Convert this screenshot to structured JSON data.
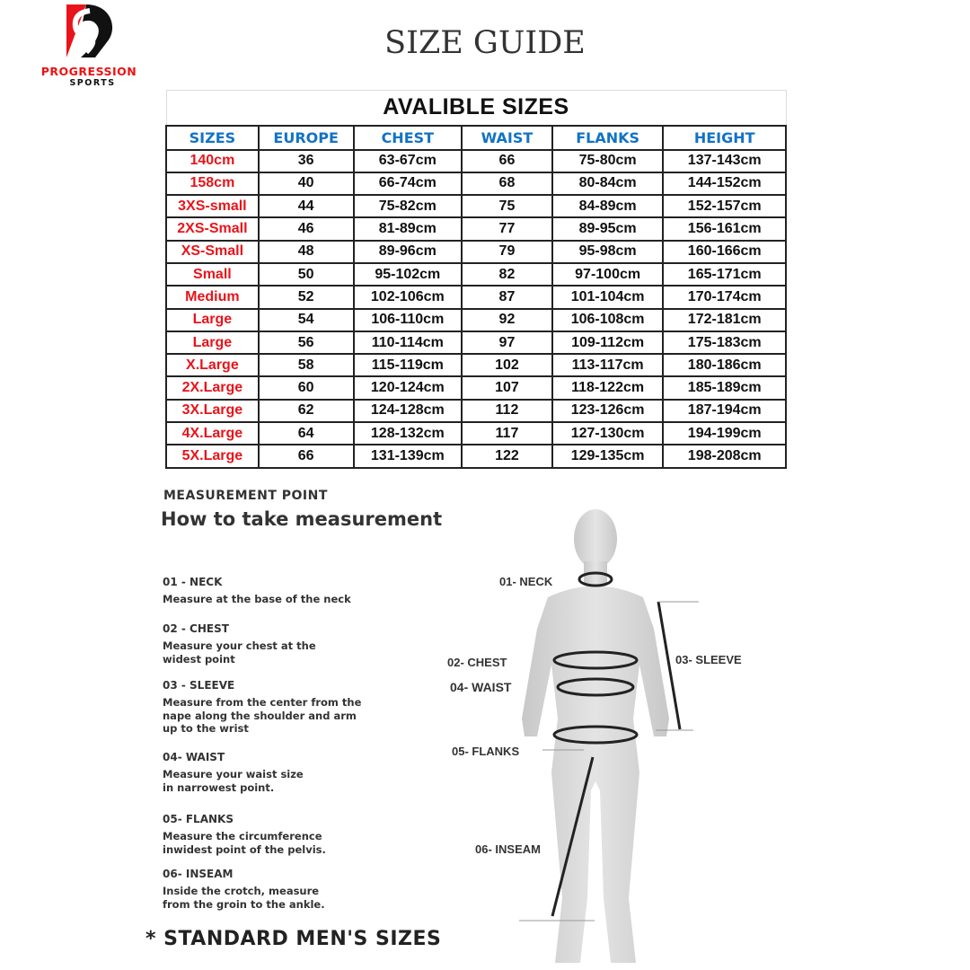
{
  "brand": {
    "name": "PROGRESSION",
    "sub": "SPORTS",
    "colors": {
      "red": "#e8141a",
      "black": "#111111"
    }
  },
  "title": "SIZE GUIDE",
  "table": {
    "caption": "AVALIBLE SIZES",
    "headers": [
      "SIZES",
      "EUROPE",
      "CHEST",
      "WAIST",
      "FLANKS",
      "HEIGHT"
    ],
    "header_color": "#1273c4",
    "size_color": "#e8141a",
    "rows": [
      [
        "140cm",
        "36",
        "63-67cm",
        "66",
        "75-80cm",
        "137-143cm"
      ],
      [
        "158cm",
        "40",
        "66-74cm",
        "68",
        "80-84cm",
        "144-152cm"
      ],
      [
        "3XS-small",
        "44",
        "75-82cm",
        "75",
        "84-89cm",
        "152-157cm"
      ],
      [
        "2XS-Small",
        "46",
        "81-89cm",
        "77",
        "89-95cm",
        "156-161cm"
      ],
      [
        "XS-Small",
        "48",
        "89-96cm",
        "79",
        "95-98cm",
        "160-166cm"
      ],
      [
        "Small",
        "50",
        "95-102cm",
        "82",
        "97-100cm",
        "165-171cm"
      ],
      [
        "Medium",
        "52",
        "102-106cm",
        "87",
        "101-104cm",
        "170-174cm"
      ],
      [
        "Large",
        "54",
        "106-110cm",
        "92",
        "106-108cm",
        "172-181cm"
      ],
      [
        "Large",
        "56",
        "110-114cm",
        "97",
        "109-112cm",
        "175-183cm"
      ],
      [
        "X.Large",
        "58",
        "115-119cm",
        "102",
        "113-117cm",
        "180-186cm"
      ],
      [
        "2X.Large",
        "60",
        "120-124cm",
        "107",
        "118-122cm",
        "185-189cm"
      ],
      [
        "3X.Large",
        "62",
        "124-128cm",
        "112",
        "123-126cm",
        "187-194cm"
      ],
      [
        "4X.Large",
        "64",
        "128-132cm",
        "117",
        "127-130cm",
        "194-199cm"
      ],
      [
        "5X.Large",
        "66",
        "131-139cm",
        "122",
        "129-135cm",
        "198-208cm"
      ]
    ]
  },
  "measurement": {
    "heading": "MEASUREMENT POINT",
    "subheading": "How to take measurement",
    "steps": [
      {
        "title": "01 - NECK",
        "desc": [
          "Measure at the base of the neck"
        ]
      },
      {
        "title": "02 - CHEST",
        "desc": [
          "Measure your chest at the",
          "widest point"
        ]
      },
      {
        "title": "03 - SLEEVE",
        "desc": [
          "Measure from the center from the",
          "nape along the shoulder and arm",
          "up to the wrist"
        ]
      },
      {
        "title": "04- WAIST",
        "desc": [
          "Measure your waist size",
          "in narrowest point."
        ]
      },
      {
        "title": "05-  FLANKS",
        "desc": [
          "Measure the circumference",
          "inwidest point of the pelvis."
        ]
      },
      {
        "title": "06- INSEAM",
        "desc": [
          "Inside the crotch, measure",
          "from the groin to the ankle."
        ]
      }
    ],
    "figure_labels": {
      "neck": "01- NECK",
      "chest": "02- CHEST",
      "sleeve": "03- SLEEVE",
      "waist": "04- WAIST",
      "flanks": "05- FLANKS",
      "inseam": "06- INSEAM"
    }
  },
  "footer": "* STANDARD MEN'S SIZES"
}
